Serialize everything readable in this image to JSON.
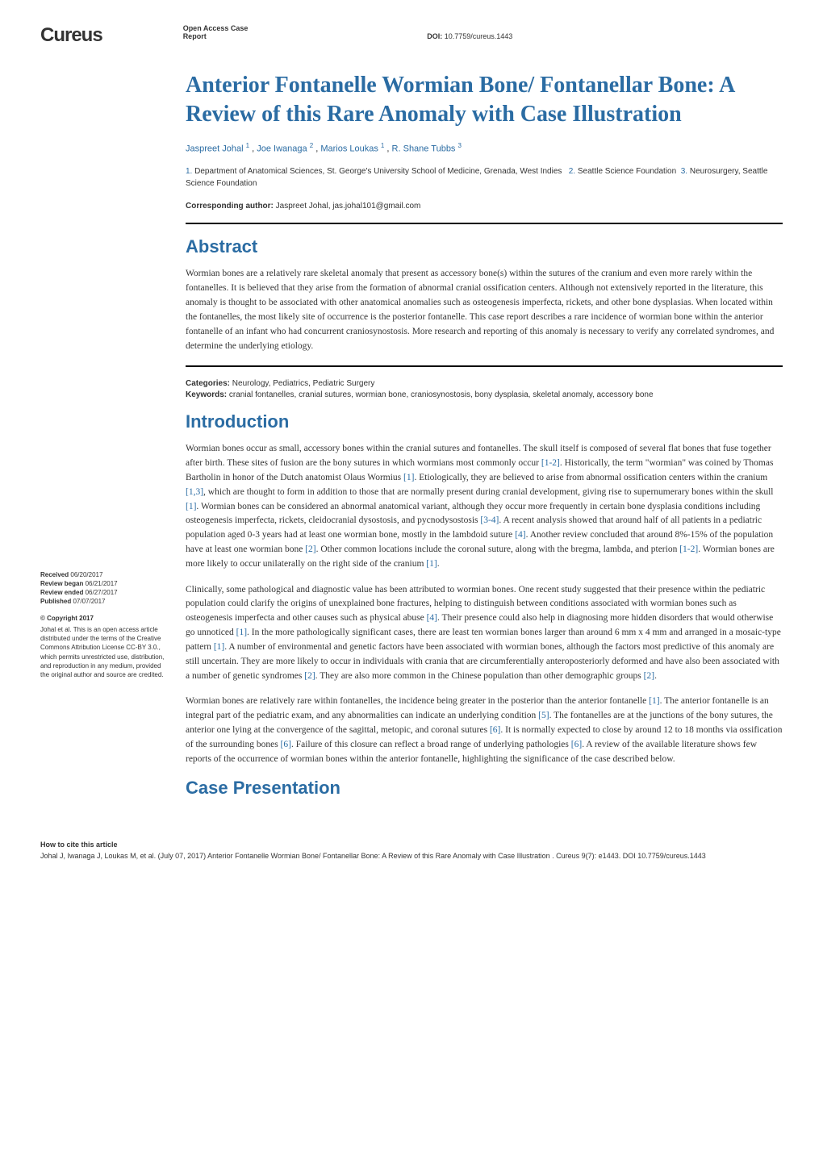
{
  "logo": "Cureus",
  "header": {
    "access_type": "Open Access Case Report",
    "doi_label": "DOI:",
    "doi": "10.7759/cureus.1443"
  },
  "article": {
    "title": "Anterior Fontanelle Wormian Bone/ Fontanellar Bone: A Review of this Rare Anomaly with Case Illustration",
    "authors": [
      {
        "name": "Jaspreet Johal",
        "sup": "1"
      },
      {
        "name": "Joe Iwanaga",
        "sup": "2"
      },
      {
        "name": "Marios Loukas",
        "sup": "1"
      },
      {
        "name": "R. Shane Tubbs",
        "sup": "3"
      }
    ],
    "affiliations": [
      {
        "num": "1.",
        "text": "Department of Anatomical Sciences, St. George's University School of Medicine, Grenada, West Indies"
      },
      {
        "num": "2.",
        "text": "Seattle Science Foundation"
      },
      {
        "num": "3.",
        "text": "Neurosurgery, Seattle Science Foundation"
      }
    ],
    "corresponding_label": "Corresponding author:",
    "corresponding_text": "Jaspreet Johal, jas.johal101@gmail.com"
  },
  "abstract": {
    "heading": "Abstract",
    "text": "Wormian bones are a relatively rare skeletal anomaly that present as accessory bone(s) within the sutures of the cranium and even more rarely within the fontanelles. It is believed that they arise from the formation of abnormal cranial ossification centers. Although not extensively reported in the literature, this anomaly is thought to be associated with other anatomical anomalies such as osteogenesis imperfecta, rickets, and other bone dysplasias. When located within the fontanelles, the most likely site of occurrence is the posterior fontanelle. This case report describes a rare incidence of wormian bone within the anterior fontanelle of an infant who had concurrent craniosynostosis. More research and reporting of this anomaly is necessary to verify any correlated syndromes, and determine the underlying etiology."
  },
  "meta": {
    "categories_label": "Categories:",
    "categories": "Neurology, Pediatrics, Pediatric Surgery",
    "keywords_label": "Keywords:",
    "keywords": "cranial fontanelles, cranial sutures, wormian bone, craniosynostosis, bony dysplasia, skeletal anomaly, accessory bone"
  },
  "introduction": {
    "heading": "Introduction",
    "p1_a": "Wormian bones occur as small, accessory bones within the cranial sutures and fontanelles. The skull itself is composed of several flat bones that fuse together after birth. These sites of fusion are the bony sutures in which wormians most commonly occur ",
    "p1_ref1": "[1-2]",
    "p1_b": ". Historically, the term \"wormian\" was coined by Thomas Bartholin in honor of the Dutch anatomist Olaus Wormius ",
    "p1_ref2": "[1]",
    "p1_c": ". Etiologically, they are believed to arise from abnormal ossification centers within the cranium ",
    "p1_ref3": "[1,3]",
    "p1_d": ", which are thought to form in addition to those that are normally present during cranial development, giving rise to supernumerary bones within the skull ",
    "p1_ref4": "[1]",
    "p1_e": ". Wormian bones can be considered an abnormal anatomical variant, although they occur more frequently in certain bone dysplasia conditions including osteogenesis imperfecta, rickets, cleidocranial dysostosis, and pycnodysostosis ",
    "p1_ref5": "[3-4]",
    "p1_f": ". A recent analysis showed that around half of all patients in a pediatric population aged 0-3 years had at least one wormian bone, mostly in the lambdoid suture ",
    "p1_ref6": "[4]",
    "p1_g": ". Another review concluded that around 8%-15% of the population have at least one wormian bone ",
    "p1_ref7": "[2]",
    "p1_h": ". Other common locations include the coronal suture, along with the bregma, lambda, and pterion ",
    "p1_ref8": "[1-2]",
    "p1_i": ". Wormian bones are more likely to occur unilaterally on the right side of the cranium ",
    "p1_ref9": "[1]",
    "p1_j": ".",
    "p2_a": "Clinically, some pathological and diagnostic value has been attributed to wormian bones. One recent study suggested that their presence within the pediatric population could clarify the origins of unexplained bone fractures, helping to distinguish between conditions associated with wormian bones such as osteogenesis imperfecta and other causes such as physical abuse ",
    "p2_ref1": "[4]",
    "p2_b": ". Their presence could also help in diagnosing more hidden disorders that would otherwise go unnoticed ",
    "p2_ref2": "[1]",
    "p2_c": ". In the more pathologically significant cases, there are least ten wormian bones larger than around 6 mm x 4 mm and arranged in a mosaic-type pattern ",
    "p2_ref3": "[1]",
    "p2_d": ". A number of environmental and genetic factors have been associated with wormian bones, although the factors most predictive of this anomaly are still uncertain. They are more likely to occur in individuals with crania that are circumferentially anteroposteriorly deformed and have also been associated with a number of genetic syndromes ",
    "p2_ref4": "[2]",
    "p2_e": ". They are also more common in the Chinese population than other demographic groups ",
    "p2_ref5": "[2]",
    "p2_f": ".",
    "p3_a": "Wormian bones are relatively rare within fontanelles, the incidence being greater in the posterior than the anterior fontanelle ",
    "p3_ref1": "[1]",
    "p3_b": ". The anterior fontanelle is an integral part of the pediatric exam, and any abnormalities can indicate an underlying condition ",
    "p3_ref2": "[5]",
    "p3_c": ". The fontanelles are at the junctions of the bony sutures, the anterior one lying at the convergence of the sagittal, metopic, and coronal sutures ",
    "p3_ref3": "[6]",
    "p3_d": ". It is normally expected to close by around 12 to 18 months via ossification of the surrounding bones ",
    "p3_ref4": "[6]",
    "p3_e": ". Failure of this closure can reflect a broad range of underlying pathologies ",
    "p3_ref5": "[6]",
    "p3_f": ". A review of the available literature shows few reports of the occurrence of wormian bones within the anterior fontanelle, highlighting the significance of the case described below."
  },
  "case_presentation": {
    "heading": "Case Presentation"
  },
  "sidebar": {
    "received_label": "Received",
    "received": "06/20/2017",
    "review_began_label": "Review began",
    "review_began": "06/21/2017",
    "review_ended_label": "Review ended",
    "review_ended": "06/27/2017",
    "published_label": "Published",
    "published": "07/07/2017",
    "copyright_label": "© Copyright",
    "copyright_year": "2017",
    "license": "Johal et al. This is an open access article distributed under the terms of the Creative Commons Attribution License CC-BY 3.0., which permits unrestricted use, distribution, and reproduction in any medium, provided the original author and source are credited."
  },
  "footer": {
    "heading": "How to cite this article",
    "text": "Johal J, Iwanaga J, Loukas M, et al. (July 07, 2017) Anterior Fontanelle Wormian Bone/ Fontanellar Bone: A Review of this Rare Anomaly with Case Illustration . Cureus 9(7): e1443. DOI 10.7759/cureus.1443"
  },
  "colors": {
    "heading_blue": "#2b6ca3",
    "text": "#333333",
    "background": "#ffffff"
  }
}
